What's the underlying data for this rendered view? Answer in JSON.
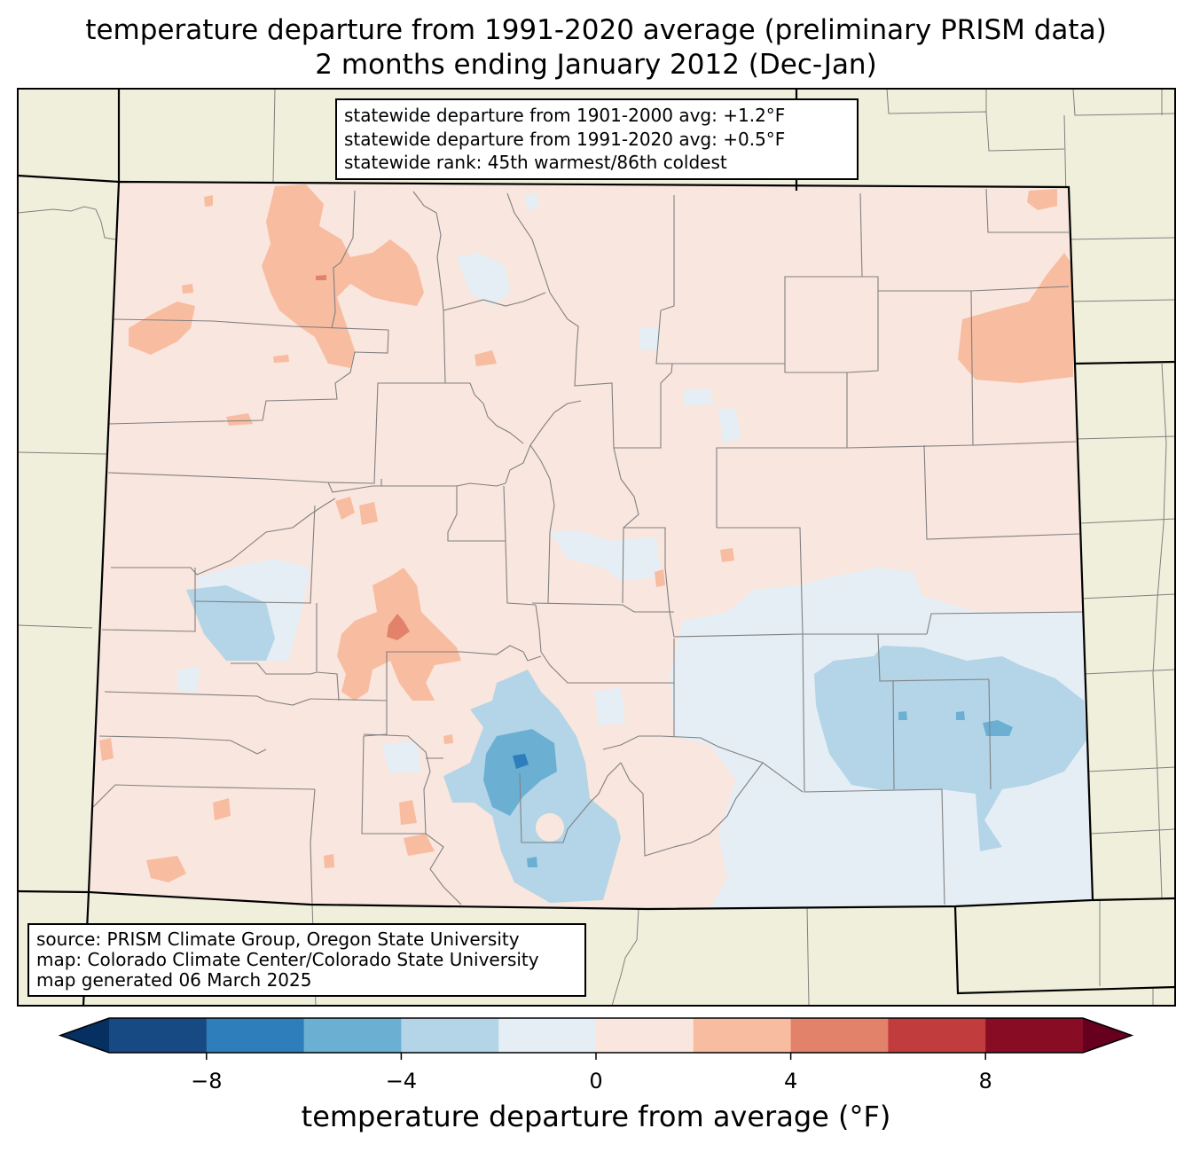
{
  "title": {
    "line1": "temperature departure from 1991-2020 average (preliminary PRISM data)",
    "line2": "2 months ending January 2012 (Dec-Jan)"
  },
  "stats": {
    "line1": "statewide departure from 1901-2000 avg: +1.2°F",
    "line2": "statewide departure from 1991-2020 avg: +0.5°F",
    "line3": "statewide rank: 45th warmest/86th coldest"
  },
  "source": {
    "line1": "source: PRISM Climate Group, Oregon State University",
    "line2": "map: Colorado Climate Center/Colorado State University",
    "line3": "map generated 06 March 2025"
  },
  "colorbar": {
    "label": "temperature departure from average (°F)",
    "ticks": [
      "−8",
      "−4",
      "0",
      "4",
      "8"
    ],
    "tick_values": [
      -8,
      -4,
      0,
      4,
      8
    ],
    "range": [
      -10,
      10
    ],
    "bin_colors": [
      "#053061",
      "#174a82",
      "#2e7ebc",
      "#6bafd3",
      "#b3d5e7",
      "#e5eef5",
      "#f9e6de",
      "#f8bca0",
      "#e2826a",
      "#c13c3c",
      "#880c24",
      "#67001f"
    ]
  },
  "map_colors": {
    "land_outside": "#efefdc",
    "state_border": "#000000",
    "county_border": "#808080"
  }
}
